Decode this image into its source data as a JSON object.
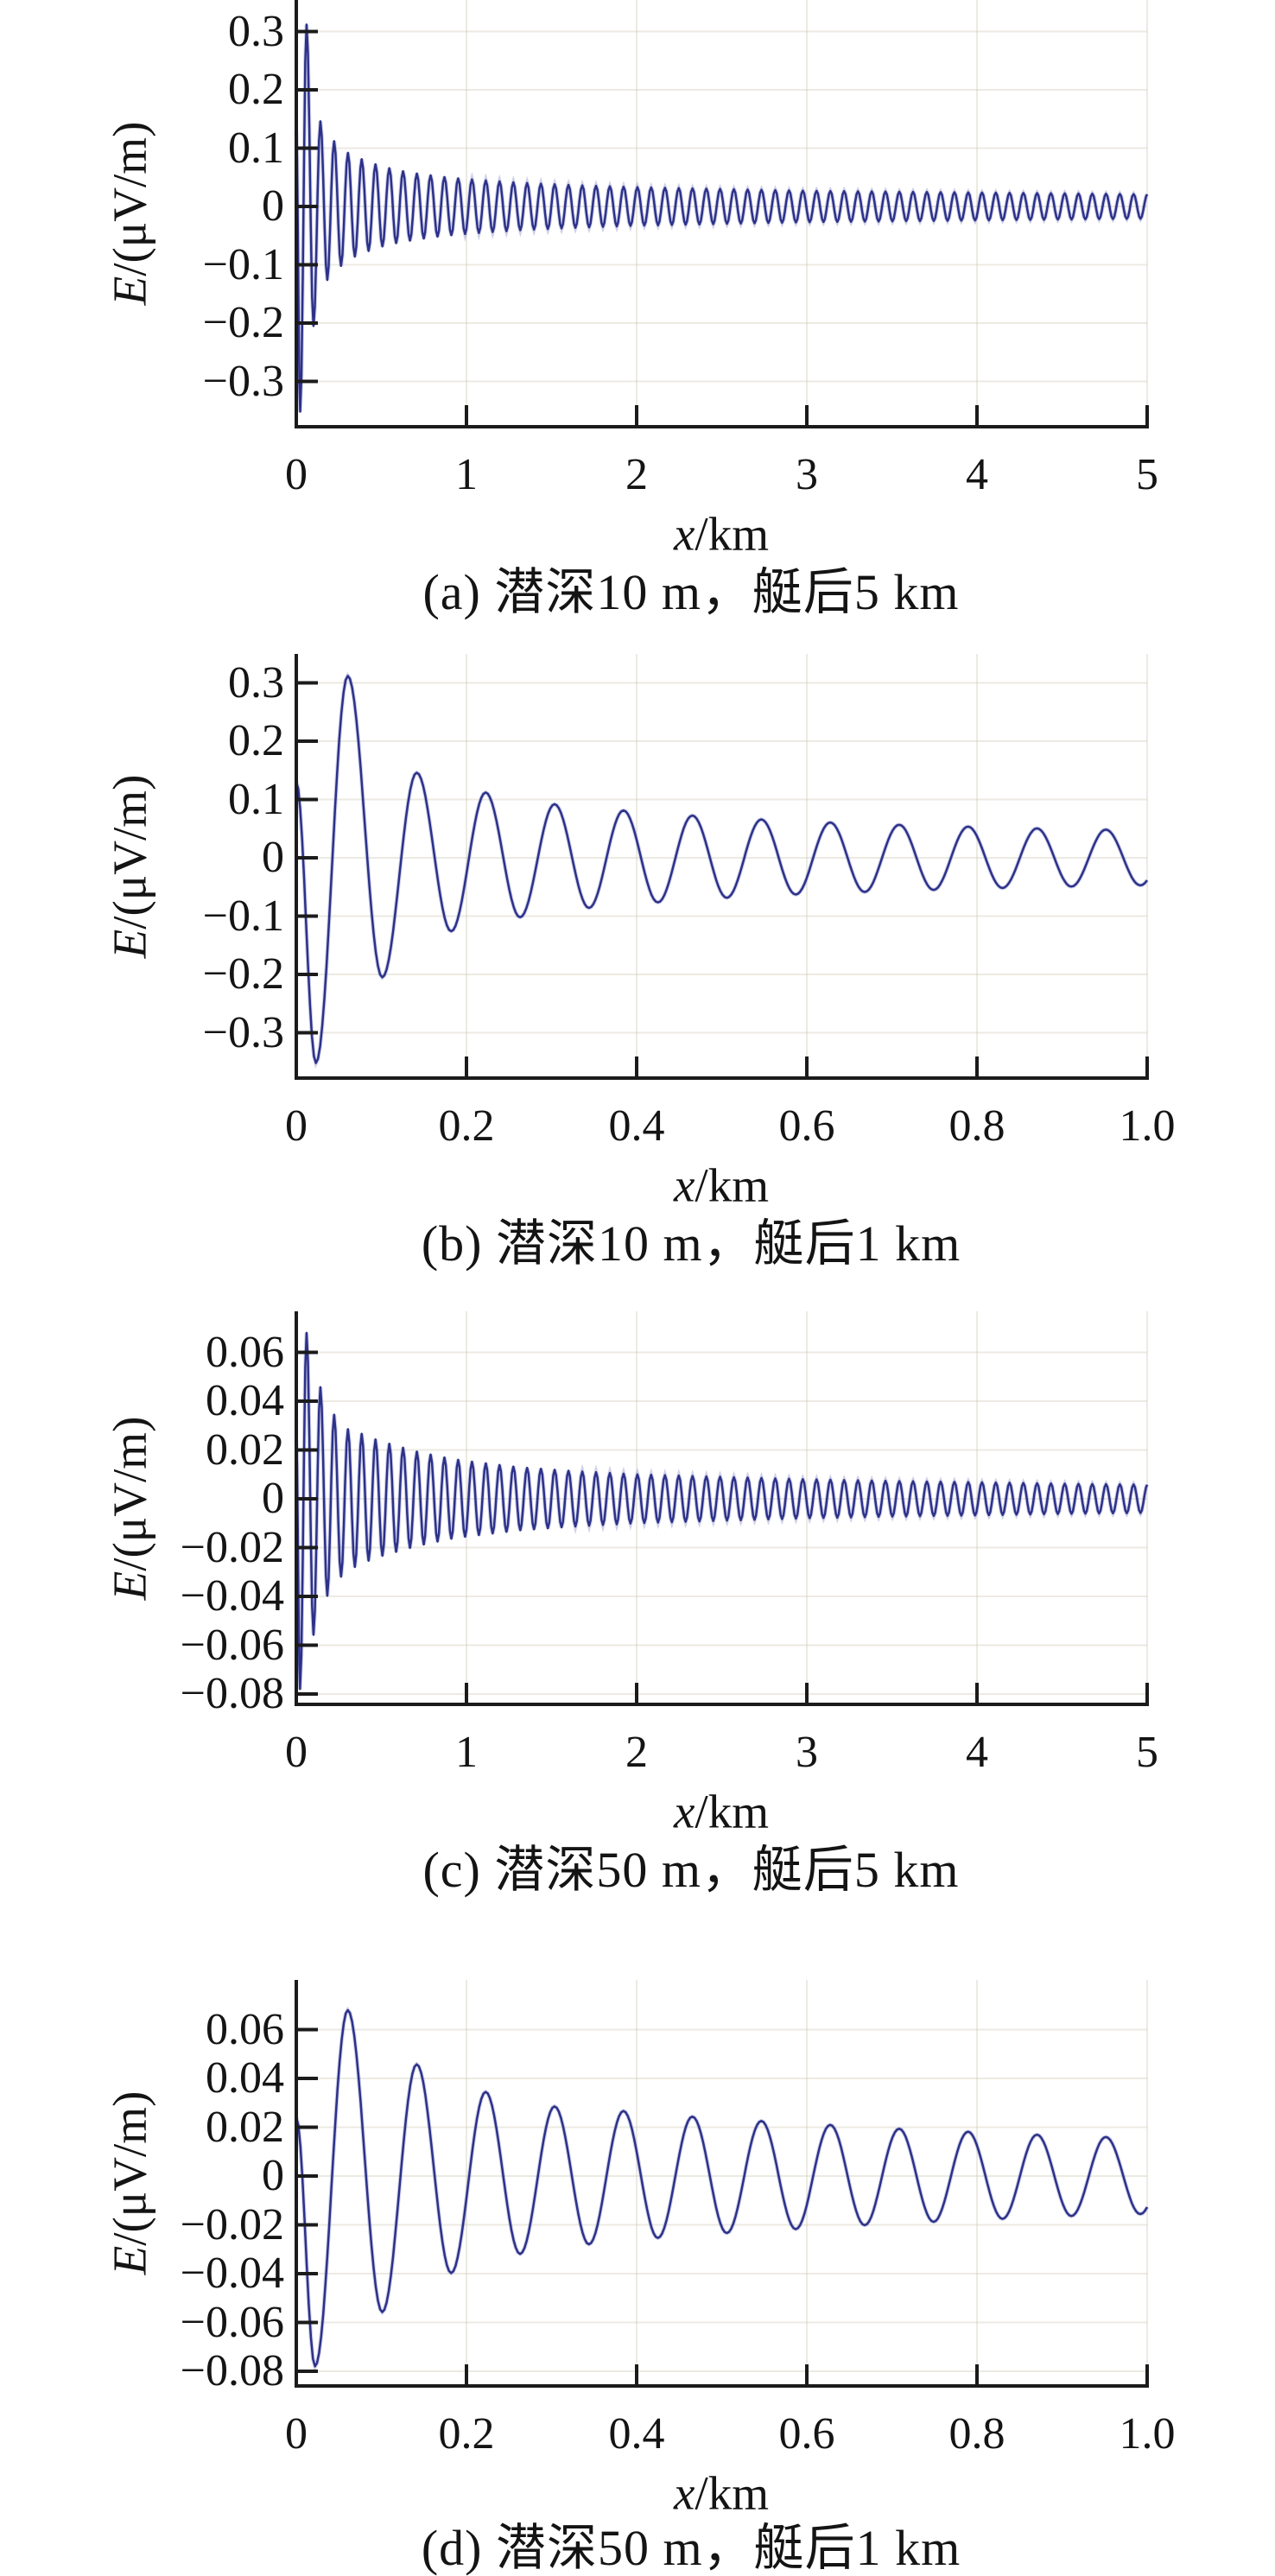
{
  "figure": {
    "background": "#ffffff",
    "curve_color": "#2c3189",
    "curve_halo_color": "rgba(130,132,195,0.38)",
    "axis_color": "#1b1b1b",
    "grid_color": "rgba(208,203,182,0.40)"
  },
  "ylabel": {
    "e": "E",
    "rest": "/(μV/m)"
  },
  "xlabel": {
    "x": "x",
    "rest": "/km"
  },
  "panels": [
    {
      "id": "a",
      "caption": "(a) 潜深10 m，艇后5 km",
      "signal": "s10",
      "x_max": 5,
      "x_ticks": [
        "0",
        "1",
        "2",
        "3",
        "4",
        "5"
      ],
      "x_tick_vals": [
        0,
        1,
        2,
        3,
        4,
        5
      ],
      "y_ticks": [
        "0.3",
        "0.2",
        "0.1",
        "0",
        "−0.1",
        "−0.2",
        "−0.3"
      ],
      "y_tick_vals": [
        0.3,
        0.2,
        0.1,
        0,
        -0.1,
        -0.2,
        -0.3
      ]
    },
    {
      "id": "b",
      "caption": "(b) 潜深10 m，艇后1 km",
      "signal": "s10",
      "x_max": 1,
      "x_ticks": [
        "0",
        "0.2",
        "0.4",
        "0.6",
        "0.8",
        "1.0"
      ],
      "x_tick_vals": [
        0,
        0.2,
        0.4,
        0.6,
        0.8,
        1.0
      ],
      "y_ticks": [
        "0.3",
        "0.2",
        "0.1",
        "0",
        "−0.1",
        "−0.2",
        "−0.3"
      ],
      "y_tick_vals": [
        0.3,
        0.2,
        0.1,
        0,
        -0.1,
        -0.2,
        -0.3
      ]
    },
    {
      "id": "c",
      "caption": "(c) 潜深50 m，艇后5 km",
      "signal": "s50",
      "x_max": 5,
      "x_ticks": [
        "0",
        "1",
        "2",
        "3",
        "4",
        "5"
      ],
      "x_tick_vals": [
        0,
        1,
        2,
        3,
        4,
        5
      ],
      "y_ticks": [
        "0.06",
        "0.04",
        "0.02",
        "0",
        "−0.02",
        "−0.04",
        "−0.06",
        "−0.08"
      ],
      "y_tick_vals": [
        0.06,
        0.04,
        0.02,
        0,
        -0.02,
        -0.04,
        -0.06,
        -0.08
      ]
    },
    {
      "id": "d",
      "caption": "(d) 潜深50 m，艇后1 km",
      "signal": "s50",
      "x_max": 1,
      "x_ticks": [
        "0",
        "0.2",
        "0.4",
        "0.6",
        "0.8",
        "1.0"
      ],
      "x_tick_vals": [
        0,
        0.2,
        0.4,
        0.6,
        0.8,
        1.0
      ],
      "y_ticks": [
        "0.06",
        "0.04",
        "0.02",
        "0",
        "−0.02",
        "−0.04",
        "−0.06",
        "−0.08"
      ],
      "y_tick_vals": [
        0.06,
        0.04,
        0.02,
        0,
        -0.02,
        -0.04,
        -0.06,
        -0.08
      ]
    }
  ],
  "signals": {
    "s10": {
      "start_value": 0.13,
      "first_trough_x": 0.023,
      "first_peak_x": 0.0605,
      "half_period_km": 0.0405,
      "envelope_keypoints": [
        [
          0.023,
          0.352
        ],
        [
          0.0605,
          0.312
        ],
        [
          0.101,
          0.205
        ],
        [
          0.1415,
          0.146
        ],
        [
          0.182,
          0.126
        ],
        [
          0.2225,
          0.112
        ],
        [
          0.263,
          0.102
        ],
        [
          0.3035,
          0.092
        ],
        [
          0.344,
          0.086
        ],
        [
          0.42,
          0.077
        ],
        [
          0.5,
          0.069
        ],
        [
          0.6,
          0.062
        ],
        [
          0.7,
          0.057
        ],
        [
          0.85,
          0.051
        ],
        [
          1.0,
          0.047
        ],
        [
          1.3,
          0.041
        ],
        [
          1.6,
          0.037
        ],
        [
          2.0,
          0.033
        ],
        [
          2.5,
          0.03
        ],
        [
          3.0,
          0.027
        ],
        [
          3.5,
          0.0255
        ],
        [
          4.0,
          0.024
        ],
        [
          4.5,
          0.0225
        ],
        [
          5.0,
          0.021
        ]
      ]
    },
    "s50": {
      "start_value": 0.024,
      "first_trough_x": 0.022,
      "first_peak_x": 0.0605,
      "half_period_km": 0.0405,
      "envelope_keypoints": [
        [
          0.022,
          0.078
        ],
        [
          0.0605,
          0.068
        ],
        [
          0.1,
          0.056
        ],
        [
          0.14,
          0.046
        ],
        [
          0.18,
          0.04
        ],
        [
          0.222,
          0.0345
        ],
        [
          0.262,
          0.032
        ],
        [
          0.304,
          0.0285
        ],
        [
          0.343,
          0.028
        ],
        [
          0.42,
          0.0255
        ],
        [
          0.5,
          0.0235
        ],
        [
          0.6,
          0.0215
        ],
        [
          0.7,
          0.0195
        ],
        [
          0.8,
          0.018
        ],
        [
          0.9,
          0.0165
        ],
        [
          1.0,
          0.0155
        ],
        [
          1.3,
          0.013
        ],
        [
          1.6,
          0.0115
        ],
        [
          2.0,
          0.01
        ],
        [
          2.5,
          0.009
        ],
        [
          3.0,
          0.008
        ],
        [
          3.5,
          0.0073
        ],
        [
          4.0,
          0.0068
        ],
        [
          4.5,
          0.0062
        ],
        [
          5.0,
          0.0058
        ]
      ]
    }
  },
  "chart_data": [
    {
      "type": "line",
      "title": "(a) 潜深10 m，艇后5 km",
      "xlabel": "x/km",
      "ylabel": "E/(μV/m)",
      "x_range": [
        0,
        5
      ],
      "y_range": [
        -0.378,
        0.354
      ],
      "x_tick_vals": [
        0,
        1,
        2,
        3,
        4,
        5
      ],
      "y_tick_vals": [
        0.3,
        0.2,
        0.1,
        0,
        -0.1,
        -0.2,
        -0.3
      ],
      "grid": "faint",
      "legend": "none",
      "series": [
        {
          "name": "E, depth 10 m, 5 km astern",
          "signal": "s10",
          "oscillation_period_km": 0.081,
          "key_extrema_x_E": [
            [
              0,
              0.13
            ],
            [
              0.023,
              -0.352
            ],
            [
              0.061,
              0.312
            ],
            [
              0.101,
              -0.205
            ],
            [
              0.142,
              0.146
            ],
            [
              0.182,
              -0.126
            ],
            [
              0.222,
              0.112
            ],
            [
              0.263,
              -0.102
            ],
            [
              0.304,
              0.092
            ],
            [
              1.0,
              0.047
            ],
            [
              5.0,
              0.021
            ]
          ]
        }
      ]
    },
    {
      "type": "line",
      "title": "(b) 潜深10 m，艇后1 km",
      "xlabel": "x/km",
      "ylabel": "E/(μV/m)",
      "x_range": [
        0,
        1
      ],
      "y_range": [
        -0.378,
        0.35
      ],
      "x_tick_vals": [
        0,
        0.2,
        0.4,
        0.6,
        0.8,
        1.0
      ],
      "y_tick_vals": [
        0.3,
        0.2,
        0.1,
        0,
        -0.1,
        -0.2,
        -0.3
      ],
      "grid": "faint",
      "legend": "none",
      "series": [
        {
          "name": "E, depth 10 m, 1 km astern",
          "signal": "s10",
          "oscillation_period_km": 0.081,
          "key_extrema_x_E": [
            [
              0,
              0.13
            ],
            [
              0.023,
              -0.352
            ],
            [
              0.061,
              0.312
            ],
            [
              0.101,
              -0.205
            ],
            [
              0.142,
              0.146
            ],
            [
              0.182,
              -0.126
            ],
            [
              0.222,
              0.112
            ],
            [
              0.263,
              -0.102
            ],
            [
              0.304,
              0.092
            ],
            [
              0.5,
              0.069
            ],
            [
              1.0,
              0.047
            ]
          ]
        }
      ]
    },
    {
      "type": "line",
      "title": "(c) 潜深50 m，艇后5 km",
      "xlabel": "x/km",
      "ylabel": "E/(μV/m)",
      "x_range": [
        0,
        5
      ],
      "y_range": [
        -0.0842,
        0.0768
      ],
      "x_tick_vals": [
        0,
        1,
        2,
        3,
        4,
        5
      ],
      "y_tick_vals": [
        0.06,
        0.04,
        0.02,
        0,
        -0.02,
        -0.04,
        -0.06,
        -0.08
      ],
      "grid": "faint",
      "legend": "none",
      "series": [
        {
          "name": "E, depth 50 m, 5 km astern",
          "signal": "s50",
          "oscillation_period_km": 0.081,
          "key_extrema_x_E": [
            [
              0,
              0.024
            ],
            [
              0.022,
              -0.078
            ],
            [
              0.061,
              0.068
            ],
            [
              0.1,
              -0.056
            ],
            [
              0.14,
              0.046
            ],
            [
              0.18,
              -0.04
            ],
            [
              0.222,
              0.0345
            ],
            [
              0.262,
              -0.032
            ],
            [
              0.304,
              0.0285
            ],
            [
              1.0,
              0.0155
            ],
            [
              5.0,
              0.0058
            ]
          ]
        }
      ]
    },
    {
      "type": "line",
      "title": "(d) 潜深50 m，艇后1 km",
      "xlabel": "x/km",
      "ylabel": "E/(μV/m)",
      "x_range": [
        0,
        1
      ],
      "y_range": [
        -0.086,
        0.0804
      ],
      "x_tick_vals": [
        0,
        0.2,
        0.4,
        0.6,
        0.8,
        1.0
      ],
      "y_tick_vals": [
        0.06,
        0.04,
        0.02,
        0,
        -0.02,
        -0.04,
        -0.06,
        -0.08
      ],
      "grid": "faint",
      "legend": "none",
      "series": [
        {
          "name": "E, depth 50 m, 1 km astern",
          "signal": "s50",
          "oscillation_period_km": 0.081,
          "key_extrema_x_E": [
            [
              0,
              0.024
            ],
            [
              0.022,
              -0.078
            ],
            [
              0.061,
              0.068
            ],
            [
              0.1,
              -0.056
            ],
            [
              0.14,
              0.046
            ],
            [
              0.18,
              -0.04
            ],
            [
              0.222,
              0.0345
            ],
            [
              0.262,
              -0.032
            ],
            [
              0.304,
              0.0285
            ],
            [
              0.5,
              0.0235
            ],
            [
              1.0,
              0.0155
            ]
          ]
        }
      ]
    }
  ]
}
